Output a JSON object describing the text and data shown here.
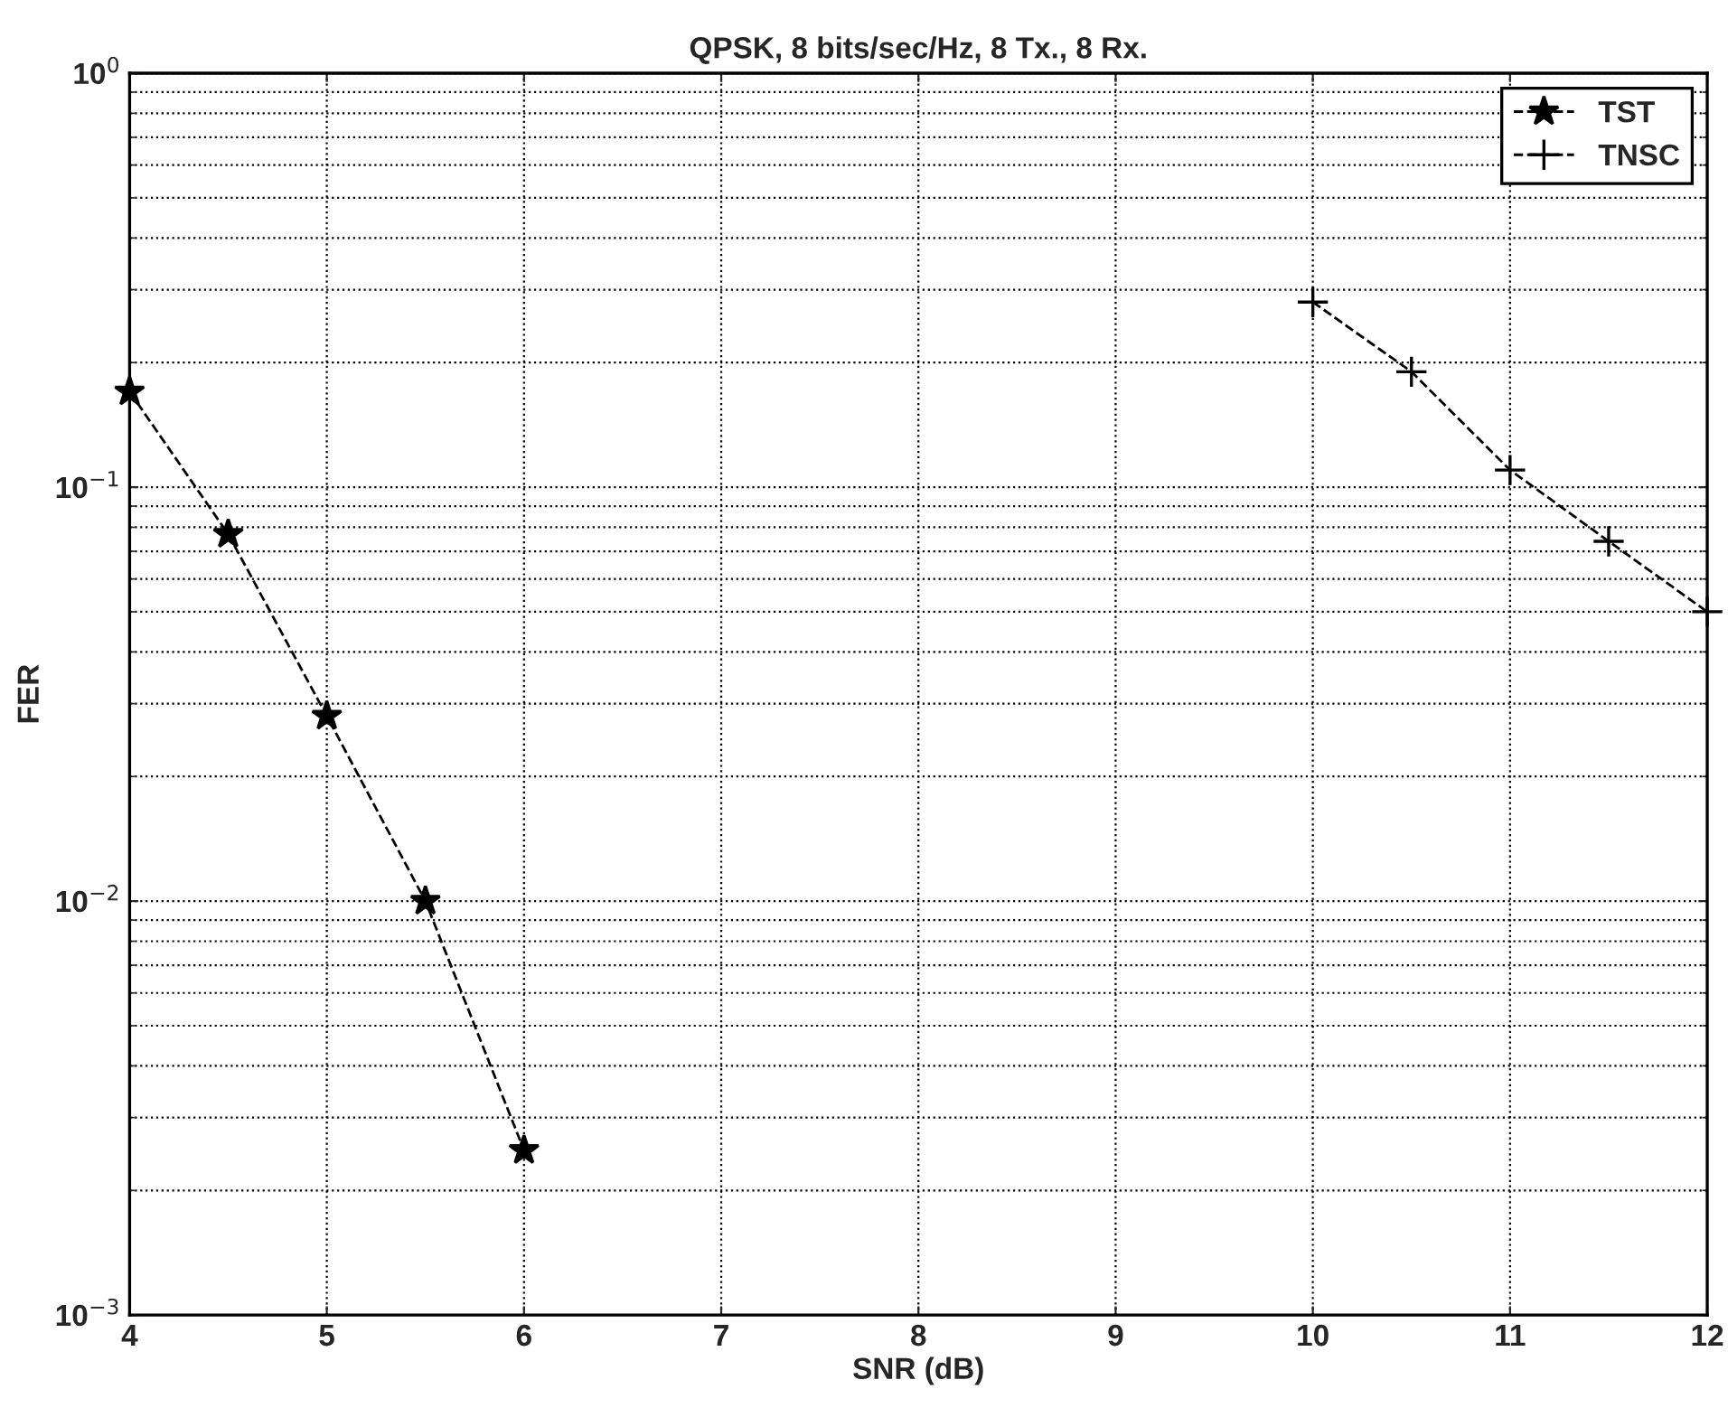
{
  "chart_data": {
    "type": "line",
    "title": "QPSK, 8 bits/sec/Hz, 8 Tx., 8 Rx.",
    "xlabel": "SNR (dB)",
    "ylabel": "FER",
    "series": [
      {
        "name": "TST",
        "color": "#000000",
        "marker": "star",
        "x": [
          4,
          4.5,
          5,
          5.5,
          6
        ],
        "values": [
          0.17,
          0.077,
          0.028,
          0.01,
          0.0025
        ]
      },
      {
        "name": "TNSC",
        "color": "#000000",
        "marker": "cross",
        "x": [
          10,
          10.5,
          11,
          11.5,
          12
        ],
        "values": [
          0.28,
          0.19,
          0.11,
          0.074,
          0.05
        ]
      }
    ],
    "line_style": "dashed",
    "log": "y",
    "grid": true,
    "legend": "top right",
    "xlim": [
      4,
      12
    ],
    "xticks": [
      4,
      5,
      6,
      7,
      8,
      9,
      10,
      11,
      12
    ],
    "ylim": [
      0.001,
      1
    ],
    "yticks": [
      {
        "value": 0.001,
        "label": "10$^{−3}$"
      },
      {
        "value": 0.01,
        "label": "10$^{−2}$"
      },
      {
        "value": 0.1,
        "label": "10$^{−1}$"
      },
      {
        "value": 1,
        "label": "10$^{0}$"
      }
    ]
  }
}
